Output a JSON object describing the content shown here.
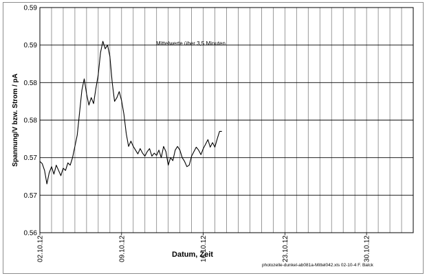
{
  "chart_data": {
    "type": "line",
    "title": "",
    "xlabel": "Datum, Zeit",
    "ylabel": "Spannung/V bzw. Strom / pA",
    "annotation": "Mittelwerte über 3,5 Minuten",
    "footer": "photozelle-dunkel-ab081a-Mittel042.xls  02-10-4 F. Balck",
    "grid": true,
    "legend": "none",
    "x_ticks": [
      "02.10.12",
      "09.10.12",
      "16.10.12",
      "23.10.12",
      "30.10.12"
    ],
    "x_range_days": [
      0,
      32
    ],
    "y_tick_labels": [
      "0.56",
      "0.57",
      "0.57",
      "0.58",
      "0.58",
      "0.59",
      "0.59"
    ],
    "ylim": [
      0.56,
      0.59
    ],
    "series": [
      {
        "name": "",
        "color": "#000000",
        "x_days": [
          0.0,
          0.2,
          0.4,
          0.6,
          0.8,
          1.0,
          1.2,
          1.4,
          1.6,
          1.8,
          2.0,
          2.2,
          2.4,
          2.6,
          2.8,
          3.0,
          3.2,
          3.4,
          3.6,
          3.8,
          4.0,
          4.2,
          4.4,
          4.6,
          4.8,
          5.0,
          5.2,
          5.4,
          5.6,
          5.8,
          6.0,
          6.2,
          6.4,
          6.6,
          6.8,
          7.0,
          7.2,
          7.4,
          7.6,
          7.8,
          8.0,
          8.2,
          8.4,
          8.6,
          8.8,
          9.0,
          9.2,
          9.4,
          9.6,
          9.8,
          10.0,
          10.2,
          10.4,
          10.6,
          10.8,
          11.0,
          11.2,
          11.4,
          11.6,
          11.8,
          12.0,
          12.2,
          12.4,
          12.6,
          12.8,
          13.0,
          13.2,
          13.4,
          13.6,
          13.8,
          14.0,
          14.2,
          14.4,
          14.6,
          14.8,
          15.0,
          15.2,
          15.4,
          15.6
        ],
        "values": [
          0.5695,
          0.5692,
          0.5683,
          0.5665,
          0.568,
          0.5688,
          0.5678,
          0.569,
          0.5683,
          0.5676,
          0.5686,
          0.5683,
          0.5693,
          0.569,
          0.57,
          0.5715,
          0.573,
          0.576,
          0.579,
          0.5805,
          0.5785,
          0.577,
          0.578,
          0.5772,
          0.5792,
          0.581,
          0.584,
          0.5855,
          0.5845,
          0.585,
          0.5835,
          0.58,
          0.5775,
          0.578,
          0.5788,
          0.5776,
          0.5758,
          0.5732,
          0.5715,
          0.5722,
          0.5715,
          0.571,
          0.5705,
          0.5712,
          0.5706,
          0.5702,
          0.5708,
          0.5712,
          0.5702,
          0.5706,
          0.5703,
          0.571,
          0.57,
          0.5715,
          0.5708,
          0.569,
          0.57,
          0.5696,
          0.571,
          0.5715,
          0.571,
          0.57,
          0.5695,
          0.5688,
          0.569,
          0.5702,
          0.5708,
          0.5714,
          0.571,
          0.5704,
          0.5712,
          0.5718,
          0.5724,
          0.5714,
          0.572,
          0.5714,
          0.5725,
          0.5735,
          0.5735
        ]
      }
    ]
  }
}
